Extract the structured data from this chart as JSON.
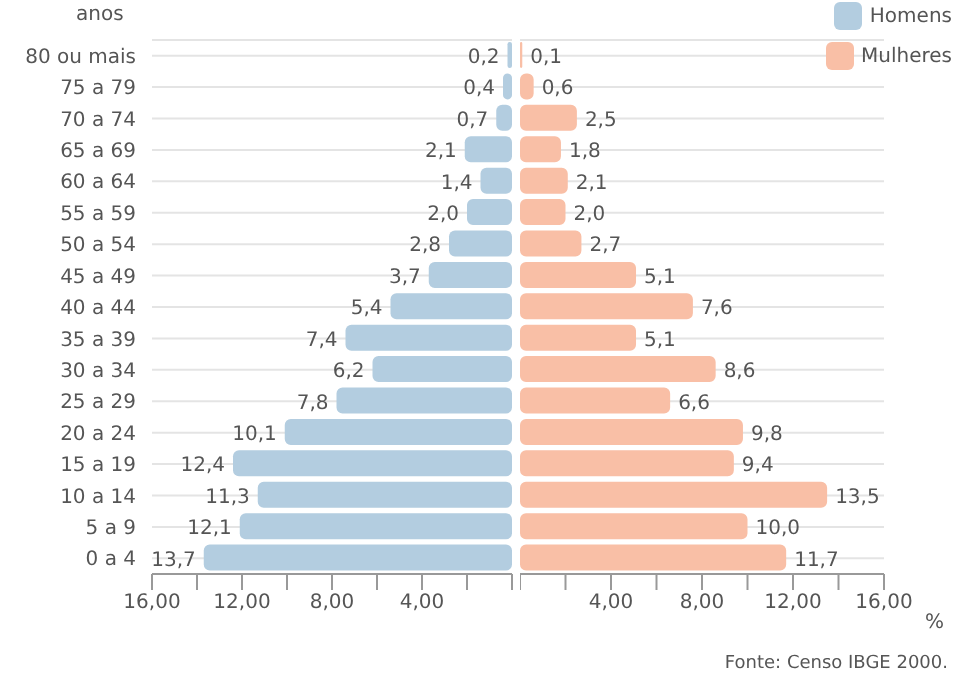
{
  "chart_data": [
    {
      "type": "bar",
      "orientation": "horizontal",
      "ylabel": "anos",
      "categories": [
        "80 ou mais",
        "75 a 79",
        "70 a 74",
        "65 a 69",
        "60 a 64",
        "55 a 59",
        "50 a 54",
        "45 a 49",
        "40 a 44",
        "35 a 39",
        "30 a 34",
        "25 a 29",
        "20 a 24",
        "15 a 19",
        "10 a 14",
        "5 a 9",
        "0 a 4"
      ],
      "series": [
        {
          "name": "Homens",
          "color": "#b3cde0",
          "values": [
            0.2,
            0.4,
            0.7,
            2.1,
            1.4,
            2.0,
            2.8,
            3.7,
            5.4,
            7.4,
            6.2,
            7.8,
            10.1,
            12.4,
            11.3,
            12.1,
            13.7
          ],
          "value_labels": [
            "0,2",
            "0,4",
            "0,7",
            "2,1",
            "1,4",
            "2,0",
            "2,8",
            "3,7",
            "5,4",
            "7,4",
            "6,2",
            "7,8",
            "10,1",
            "12,4",
            "11,3",
            "12,1",
            "13,7"
          ]
        }
      ],
      "xlim": [
        16,
        0
      ],
      "xticks": [
        {
          "value": 16,
          "label": "16,00"
        },
        {
          "value": 14,
          "label": null
        },
        {
          "value": 12,
          "label": "12,00"
        },
        {
          "value": 10,
          "label": null
        },
        {
          "value": 8,
          "label": "8,00"
        },
        {
          "value": 6,
          "label": null
        },
        {
          "value": 4,
          "label": "4,00"
        },
        {
          "value": 2,
          "label": null
        },
        {
          "value": 0,
          "label": null
        }
      ],
      "grid": "y",
      "legend": "top right"
    },
    {
      "type": "bar",
      "orientation": "horizontal",
      "categories": [
        null,
        null,
        null,
        null,
        null,
        null,
        null,
        null,
        null,
        null,
        null,
        null,
        null,
        null,
        null,
        null,
        null
      ],
      "series": [
        {
          "name": "Mulheres",
          "color": "#f9bfa6",
          "values": [
            0.1,
            0.6,
            2.5,
            1.8,
            2.1,
            2.0,
            2.7,
            5.1,
            7.6,
            5.1,
            8.6,
            6.6,
            9.8,
            9.4,
            13.5,
            10.0,
            11.7
          ],
          "value_labels": [
            "0,1",
            "0,6",
            "2,5",
            "1,8",
            "2,1",
            "2,0",
            "2,7",
            "5,1",
            "7,6",
            "5,1",
            "8,6",
            "6,6",
            "9,8",
            "9,4",
            "13,5",
            "10,0",
            "11,7"
          ]
        }
      ],
      "xlim": [
        0,
        16
      ],
      "xticks": [
        {
          "value": 0,
          "label": null
        },
        {
          "value": 2,
          "label": null
        },
        {
          "value": 4,
          "label": "4,00"
        },
        {
          "value": 6,
          "label": null
        },
        {
          "value": 8,
          "label": "8,00"
        },
        {
          "value": 10,
          "label": null
        },
        {
          "value": 12,
          "label": "12,00"
        },
        {
          "value": 14,
          "label": null
        },
        {
          "value": 16,
          "label": "16,00"
        }
      ],
      "tick_labels": "x",
      "grid": "y",
      "legend": "top right",
      "annotations": [
        "%",
        "Fonte: Censo IBGE 2000."
      ]
    }
  ]
}
